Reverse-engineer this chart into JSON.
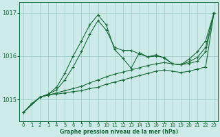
{
  "title": "Graphe pression niveau de la mer (hPa)",
  "background_color": "#cceae7",
  "grid_color": "#99ccc8",
  "line_color": "#1a6b3a",
  "xlim": [
    -0.5,
    23.5
  ],
  "ylim": [
    1014.5,
    1017.25
  ],
  "yticks": [
    1015,
    1016,
    1017
  ],
  "xticks": [
    0,
    1,
    2,
    3,
    4,
    5,
    6,
    7,
    8,
    9,
    10,
    11,
    12,
    13,
    14,
    15,
    16,
    17,
    18,
    19,
    20,
    21,
    22,
    23
  ],
  "series": [
    {
      "x": [
        0,
        1,
        2,
        3,
        4,
        5,
        6,
        7,
        8,
        9,
        10,
        11,
        12,
        13,
        14,
        15,
        16,
        17,
        18,
        19,
        20,
        21,
        22,
        23
      ],
      "y": [
        1014.7,
        1014.9,
        1015.05,
        1015.1,
        1015.12,
        1015.15,
        1015.18,
        1015.2,
        1015.25,
        1015.28,
        1015.35,
        1015.4,
        1015.45,
        1015.5,
        1015.55,
        1015.6,
        1015.65,
        1015.68,
        1015.65,
        1015.62,
        1015.65,
        1015.7,
        1015.75,
        1017.0
      ],
      "marker": true,
      "linewidth": 0.8
    },
    {
      "x": [
        0,
        1,
        2,
        3,
        4,
        5,
        6,
        7,
        8,
        9,
        10,
        11,
        12,
        13,
        14,
        15,
        16,
        17,
        18,
        19,
        20,
        21,
        22,
        23
      ],
      "y": [
        1014.7,
        1014.9,
        1015.05,
        1015.1,
        1015.15,
        1015.2,
        1015.25,
        1015.3,
        1015.38,
        1015.45,
        1015.52,
        1015.58,
        1015.63,
        1015.68,
        1015.73,
        1015.78,
        1015.82,
        1015.85,
        1015.82,
        1015.8,
        1015.83,
        1015.88,
        1016.1,
        1017.0
      ],
      "marker": true,
      "linewidth": 0.8
    },
    {
      "x": [
        0,
        2,
        3,
        4,
        5,
        6,
        7,
        8,
        9,
        10,
        11,
        12,
        13,
        14,
        15,
        16,
        17,
        18,
        19,
        20,
        21,
        22,
        23
      ],
      "y": [
        1014.7,
        1015.05,
        1015.12,
        1015.22,
        1015.45,
        1015.75,
        1016.1,
        1016.5,
        1016.82,
        1016.6,
        1016.2,
        1016.13,
        1016.13,
        1016.05,
        1015.98,
        1016.0,
        1015.97,
        1015.82,
        1015.8,
        1015.87,
        1015.97,
        1016.2,
        1017.0
      ],
      "marker": true,
      "linewidth": 0.8
    },
    {
      "x": [
        0,
        2,
        3,
        4,
        5,
        6,
        7,
        8,
        9,
        10,
        11,
        12,
        13,
        14,
        15,
        16,
        17,
        18,
        19,
        20,
        21,
        22,
        23
      ],
      "y": [
        1014.7,
        1015.05,
        1015.12,
        1015.28,
        1015.6,
        1016.0,
        1016.35,
        1016.72,
        1016.95,
        1016.72,
        1016.15,
        1015.95,
        1015.72,
        1016.08,
        1015.98,
        1016.03,
        1015.95,
        1015.82,
        1015.8,
        1015.93,
        1016.1,
        1016.35,
        1017.0
      ],
      "marker": true,
      "linewidth": 0.8
    }
  ]
}
